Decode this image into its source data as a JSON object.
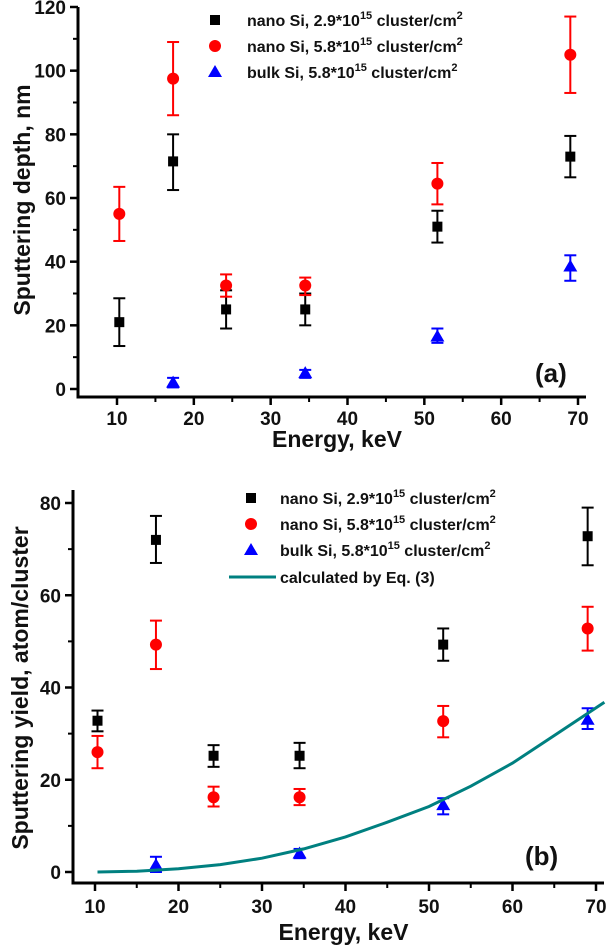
{
  "chart_data": [
    {
      "type": "scatter",
      "panel_label": "(a)",
      "xlabel": "Energy, keV",
      "ylabel": "Sputtering depth, nm",
      "xlim": [
        5,
        71
      ],
      "ylim": [
        -2,
        120
      ],
      "xticks": [
        10,
        20,
        30,
        40,
        50,
        60,
        70
      ],
      "yticks": [
        0,
        20,
        40,
        60,
        80,
        100,
        120
      ],
      "grid": false,
      "legend_position": "top-right",
      "series": [
        {
          "name": "nano Si, 2.9*10^15 cluster/cm^2",
          "label_main": "nano Si, 2.9*10",
          "label_sup": "15",
          "label_tail": " cluster/cm",
          "label_sup2": "2",
          "marker": "square",
          "color": "#000000",
          "points": [
            {
              "x": 10.3,
              "y": 21,
              "lo": 13.5,
              "hi": 28.5
            },
            {
              "x": 17.3,
              "y": 71.5,
              "lo": 62.5,
              "hi": 80
            },
            {
              "x": 24.2,
              "y": 25,
              "lo": 19,
              "hi": 31
            },
            {
              "x": 34.5,
              "y": 25,
              "lo": 20,
              "hi": 30
            },
            {
              "x": 51.7,
              "y": 51,
              "lo": 46,
              "hi": 56
            },
            {
              "x": 69,
              "y": 73,
              "lo": 66.5,
              "hi": 79.5
            }
          ]
        },
        {
          "name": "nano Si, 5.8*10^15 cluster/cm^2",
          "label_main": "nano Si, 5.8*10",
          "label_sup": "15",
          "label_tail": " cluster/cm",
          "label_sup2": "2",
          "marker": "circle",
          "color": "#ff0000",
          "points": [
            {
              "x": 10.3,
              "y": 55,
              "lo": 46.5,
              "hi": 63.5
            },
            {
              "x": 17.3,
              "y": 97.5,
              "lo": 86,
              "hi": 109
            },
            {
              "x": 24.2,
              "y": 32.5,
              "lo": 29,
              "hi": 36
            },
            {
              "x": 34.5,
              "y": 32.5,
              "lo": 29.5,
              "hi": 35
            },
            {
              "x": 51.7,
              "y": 64.5,
              "lo": 58,
              "hi": 71
            },
            {
              "x": 69,
              "y": 105,
              "lo": 93,
              "hi": 117
            }
          ]
        },
        {
          "name": "bulk Si, 5.8*10^15 cluster/cm^2",
          "label_main": "bulk Si, 5.8*10",
          "label_sup": "15",
          "label_tail": " cluster/cm",
          "label_sup2": "2",
          "marker": "triangle",
          "color": "#0000ff",
          "points": [
            {
              "x": 17.3,
              "y": 2,
              "lo": 0.5,
              "hi": 3.5
            },
            {
              "x": 34.5,
              "y": 5,
              "lo": 3.5,
              "hi": 6
            },
            {
              "x": 51.7,
              "y": 16.5,
              "lo": 14.5,
              "hi": 19
            },
            {
              "x": 69,
              "y": 38.5,
              "lo": 34,
              "hi": 42
            }
          ]
        }
      ]
    },
    {
      "type": "scatter",
      "panel_label": "(b)",
      "xlabel": "Energy, keV",
      "ylabel": "Sputtering yield, atom/cluster",
      "xlim": [
        7.5,
        71
      ],
      "ylim": [
        -2.5,
        84
      ],
      "xticks": [
        10,
        20,
        30,
        40,
        50,
        60,
        70
      ],
      "yticks": [
        0,
        20,
        40,
        60,
        80
      ],
      "grid": false,
      "legend_position": "top-right",
      "series": [
        {
          "name": "nano Si, 2.9*10^15 cluster/cm^2",
          "label_main": "nano Si, 2.9*10",
          "label_sup": "15",
          "label_tail": " cluster/cm",
          "label_sup2": "2",
          "marker": "square",
          "color": "#000000",
          "points": [
            {
              "x": 10.3,
              "y": 32.8,
              "lo": 30.5,
              "hi": 35
            },
            {
              "x": 17.3,
              "y": 72,
              "lo": 67,
              "hi": 77.2
            },
            {
              "x": 24.2,
              "y": 25.2,
              "lo": 22.8,
              "hi": 27.5
            },
            {
              "x": 34.5,
              "y": 25.2,
              "lo": 22.5,
              "hi": 28
            },
            {
              "x": 51.7,
              "y": 49.3,
              "lo": 45.8,
              "hi": 52.8
            },
            {
              "x": 69,
              "y": 72.8,
              "lo": 66.5,
              "hi": 79
            }
          ]
        },
        {
          "name": "nano Si, 5.8*10^15 cluster/cm^2",
          "label_main": "nano Si, 5.8*10",
          "label_sup": "15",
          "label_tail": " cluster/cm",
          "label_sup2": "2",
          "marker": "circle",
          "color": "#ff0000",
          "points": [
            {
              "x": 10.3,
              "y": 26,
              "lo": 22.5,
              "hi": 29.5
            },
            {
              "x": 17.3,
              "y": 49.3,
              "lo": 44,
              "hi": 54.5
            },
            {
              "x": 24.2,
              "y": 16.2,
              "lo": 14.2,
              "hi": 18.5
            },
            {
              "x": 34.5,
              "y": 16.2,
              "lo": 14.5,
              "hi": 18
            },
            {
              "x": 51.7,
              "y": 32.7,
              "lo": 29.2,
              "hi": 36
            },
            {
              "x": 69,
              "y": 52.8,
              "lo": 48,
              "hi": 57.5
            }
          ]
        },
        {
          "name": "bulk Si, 5.8*10^15 cluster/cm^2",
          "label_main": "bulk Si, 5.8*10",
          "label_sup": "15",
          "label_tail": " cluster/cm",
          "label_sup2": "2",
          "marker": "triangle",
          "color": "#0000ff",
          "points": [
            {
              "x": 17.3,
              "y": 1.5,
              "lo": 0,
              "hi": 3.3
            },
            {
              "x": 34.5,
              "y": 4,
              "lo": 3,
              "hi": 5
            },
            {
              "x": 51.7,
              "y": 14.5,
              "lo": 12.5,
              "hi": 16
            },
            {
              "x": 69,
              "y": 33,
              "lo": 31,
              "hi": 35.5
            }
          ]
        },
        {
          "name": "calculated by Eq. (3)",
          "label_main": "calculated by Eq. (3)",
          "marker": "line",
          "color": "#008080",
          "curve": [
            {
              "x": 10.3,
              "y": 0.0
            },
            {
              "x": 15,
              "y": 0.17
            },
            {
              "x": 20,
              "y": 0.69
            },
            {
              "x": 25,
              "y": 1.6
            },
            {
              "x": 30,
              "y": 3.0
            },
            {
              "x": 35,
              "y": 5.0
            },
            {
              "x": 40,
              "y": 7.6
            },
            {
              "x": 45,
              "y": 10.8
            },
            {
              "x": 50,
              "y": 14.2
            },
            {
              "x": 55,
              "y": 18.6
            },
            {
              "x": 60,
              "y": 23.6
            },
            {
              "x": 65,
              "y": 29.6
            },
            {
              "x": 71,
              "y": 36.8
            }
          ]
        }
      ]
    }
  ]
}
